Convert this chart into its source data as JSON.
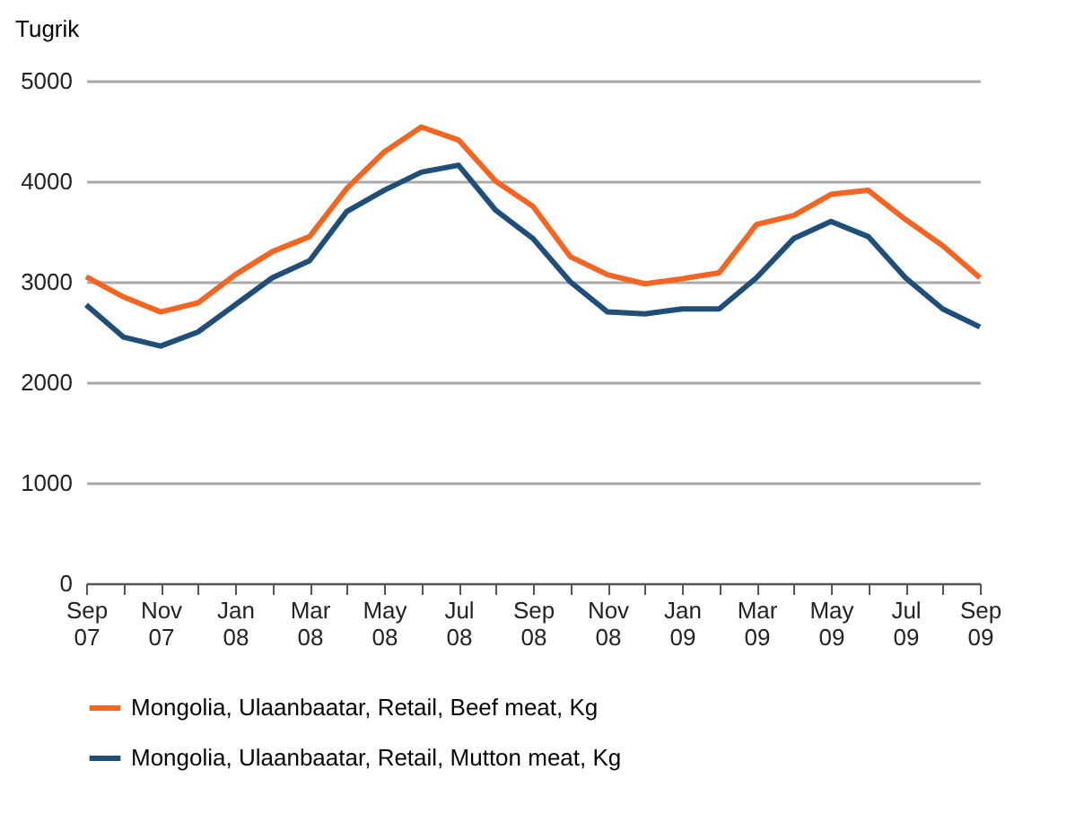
{
  "chart_data": {
    "type": "line",
    "ylabel": "Tugrik",
    "categories": [
      "Sep 07",
      null,
      "Nov 07",
      null,
      "Jan 08",
      null,
      "Mar 08",
      null,
      "May 08",
      null,
      "Jul 08",
      null,
      "Sep 08",
      null,
      "Nov 08",
      null,
      "Jan 09",
      null,
      "Mar 09",
      null,
      "May 09",
      null,
      "Jul 09",
      null,
      "Sep 09"
    ],
    "series": [
      {
        "name": "Mongolia, Ulaanbaatar, Retail, Beef meat, Kg",
        "color": "#f26522",
        "values": [
          3050,
          2850,
          2700,
          2790,
          3070,
          3300,
          3450,
          3930,
          4290,
          4540,
          4410,
          4000,
          3750,
          3250,
          3070,
          2980,
          3030,
          3090,
          3570,
          3660,
          3870,
          3910,
          3620,
          3360,
          3040
        ]
      },
      {
        "name": "Mongolia, Ulaanbaatar, Retail, Mutton meat, Kg",
        "color": "#1f4e79",
        "values": [
          2770,
          2450,
          2360,
          2500,
          2770,
          3040,
          3210,
          3700,
          3910,
          4090,
          4160,
          3710,
          3430,
          3000,
          2700,
          2680,
          2730,
          2730,
          3040,
          3430,
          3600,
          3450,
          3040,
          2730,
          2550
        ]
      }
    ],
    "ylim": [
      0,
      5000
    ],
    "yticks": [
      0,
      1000,
      2000,
      3000,
      4000,
      5000
    ],
    "grid": "y",
    "legend": "bottom",
    "marker": "none",
    "line_style": "solid"
  }
}
